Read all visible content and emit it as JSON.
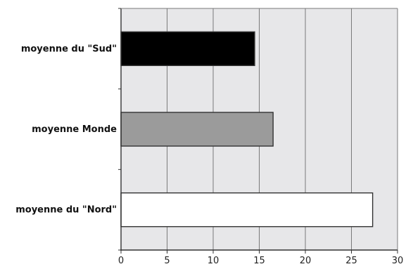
{
  "chart_data": {
    "type": "bar",
    "orientation": "horizontal",
    "title": "",
    "xlabel": "",
    "ylabel": "",
    "categories": [
      "moyenne du \"Sud\"",
      "moyenne Monde",
      "moyenne du \"Nord\""
    ],
    "values": [
      14.5,
      16.5,
      27.3
    ],
    "bar_colors": [
      "#000000",
      "#9b9b9b",
      "#ffffff"
    ],
    "xlim": [
      0,
      30
    ],
    "x_ticks": [
      0,
      5,
      10,
      15,
      20,
      25,
      30
    ],
    "grid": "vertical",
    "legend": "none",
    "plot_background": "#e7e7e9"
  }
}
